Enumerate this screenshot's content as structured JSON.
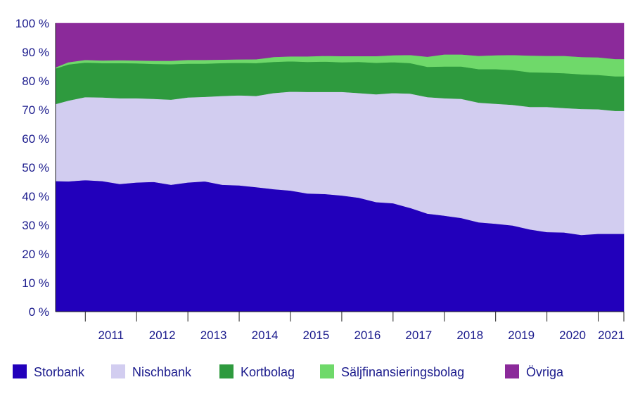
{
  "chart_data": {
    "type": "area",
    "stacked": true,
    "percent": true,
    "x_start": 2010.42,
    "x_end": 2021.5,
    "x_ticks": [
      "2011",
      "2012",
      "2013",
      "2014",
      "2015",
      "2016",
      "2017",
      "2018",
      "2019",
      "2020",
      "2021"
    ],
    "y_ticks": [
      "0 %",
      "10 %",
      "20 %",
      "30 %",
      "40 %",
      "50 %",
      "60 %",
      "70 %",
      "80 %",
      "90 %",
      "100 %"
    ],
    "ylim": [
      0,
      100
    ],
    "x": [
      2010.42,
      2010.67,
      2011.0,
      2011.33,
      2011.67,
      2012.0,
      2012.33,
      2012.67,
      2013.0,
      2013.33,
      2013.67,
      2014.0,
      2014.33,
      2014.67,
      2015.0,
      2015.33,
      2015.67,
      2016.0,
      2016.33,
      2016.67,
      2017.0,
      2017.33,
      2017.67,
      2018.0,
      2018.33,
      2018.67,
      2019.0,
      2019.33,
      2019.67,
      2020.0,
      2020.33,
      2020.67,
      2021.0,
      2021.33,
      2021.5
    ],
    "series": [
      {
        "name": "Storbank",
        "color": "#2200bb",
        "values": [
          45.3,
          45.2,
          45.6,
          45.3,
          44.3,
          44.8,
          45.0,
          44.0,
          44.8,
          45.2,
          44.0,
          43.8,
          43.2,
          42.5,
          42.0,
          41.0,
          40.8,
          40.3,
          39.5,
          38.0,
          37.6,
          36.0,
          34.0,
          33.3,
          32.5,
          31.0,
          30.5,
          29.9,
          28.5,
          27.6,
          27.5,
          26.6,
          27.0,
          27.0,
          27.0
        ]
      },
      {
        "name": "Nischbank",
        "color": "#d2cdf0",
        "values": [
          26.7,
          28.0,
          28.8,
          29.0,
          29.7,
          29.2,
          28.8,
          29.5,
          29.5,
          29.3,
          30.8,
          31.2,
          31.6,
          33.3,
          34.3,
          35.2,
          35.4,
          35.9,
          36.3,
          37.4,
          38.2,
          39.6,
          40.4,
          40.7,
          41.3,
          41.5,
          41.6,
          41.8,
          42.5,
          43.4,
          43.1,
          43.7,
          43.2,
          42.6,
          42.6
        ]
      },
      {
        "name": "Kortbolag",
        "color": "#2e9a3e",
        "values": [
          12.3,
          12.5,
          12.0,
          11.9,
          12.2,
          12.1,
          12.1,
          12.3,
          11.7,
          11.5,
          11.4,
          11.3,
          11.4,
          10.8,
          10.5,
          10.4,
          10.5,
          10.3,
          10.8,
          10.9,
          10.7,
          10.6,
          10.5,
          11.0,
          11.2,
          11.6,
          12.0,
          12.1,
          12.0,
          11.9,
          12.1,
          12.0,
          11.9,
          12.0,
          12.0
        ]
      },
      {
        "name": "Säljfinansieringsbolag",
        "color": "#6fd96a",
        "values": [
          0.4,
          0.8,
          0.9,
          0.9,
          1.0,
          1.0,
          1.1,
          1.2,
          1.3,
          1.3,
          1.2,
          1.2,
          1.3,
          1.7,
          1.7,
          1.9,
          2.0,
          2.1,
          2.0,
          2.3,
          2.4,
          2.8,
          3.5,
          4.2,
          4.2,
          4.6,
          4.8,
          5.2,
          5.8,
          5.8,
          6.0,
          6.0,
          6.1,
          6.0,
          6.0
        ]
      },
      {
        "name": "Övriga",
        "color": "#8b2a9a",
        "values": [
          15.3,
          13.5,
          12.7,
          12.9,
          12.8,
          12.9,
          13.0,
          13.0,
          12.7,
          12.7,
          12.6,
          12.5,
          12.5,
          11.7,
          11.5,
          11.5,
          11.3,
          11.4,
          11.4,
          11.4,
          11.1,
          11.0,
          11.6,
          10.8,
          10.8,
          11.3,
          11.1,
          11.0,
          11.2,
          11.3,
          11.3,
          11.7,
          11.8,
          12.4,
          12.4
        ]
      }
    ]
  }
}
